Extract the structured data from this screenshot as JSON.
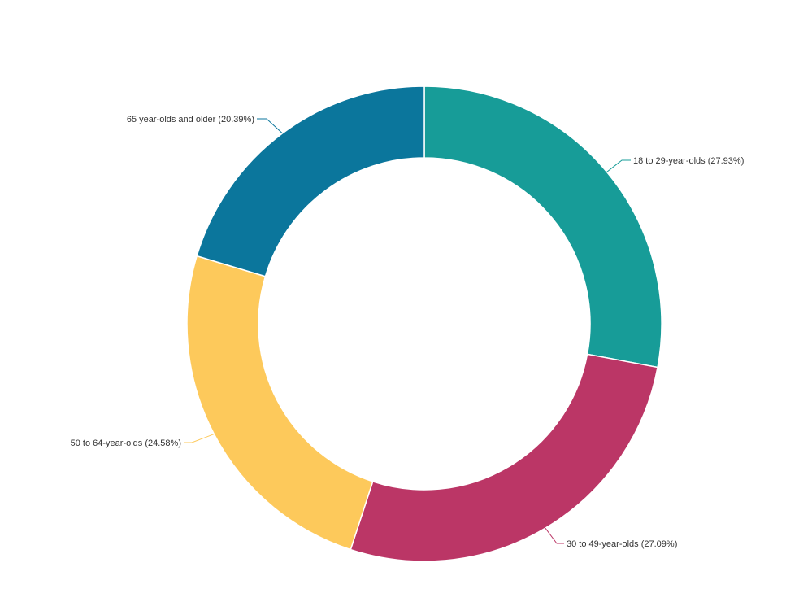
{
  "chart_data": {
    "type": "pie",
    "variant": "donut",
    "slices": [
      {
        "label": "18 to 29-year-olds (27.93%)",
        "value": 27.93,
        "color": "#179c98"
      },
      {
        "label": "30 to 49-year-olds (27.09%)",
        "value": 27.09,
        "color": "#bb3666"
      },
      {
        "label": "50 to 64-year-olds (24.58%)",
        "value": 24.58,
        "color": "#fdc95b"
      },
      {
        "label": "65 year-olds and older (20.39%)",
        "value": 20.39,
        "color": "#0b769c"
      }
    ]
  }
}
